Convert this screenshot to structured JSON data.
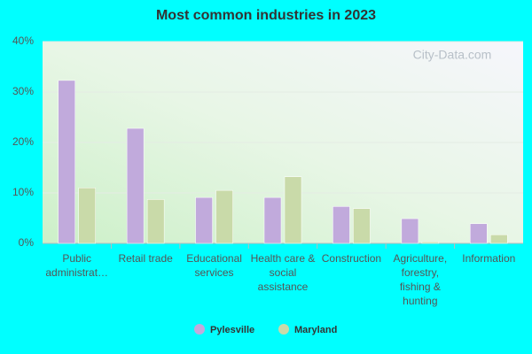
{
  "chart_data": {
    "type": "bar",
    "title": "Most common industries in 2023",
    "watermark": "City-Data.com",
    "categories": [
      "Public administrat…",
      "Retail trade",
      "Educational services",
      "Health care & social assistance",
      "Construction",
      "Agriculture, forestry, fishing & hunting",
      "Information"
    ],
    "series": [
      {
        "name": "Pylesville",
        "color": "#c1aadc",
        "values": [
          32.3,
          22.8,
          9.1,
          9.1,
          7.3,
          4.9,
          3.9
        ]
      },
      {
        "name": "Maryland",
        "color": "#c9daa9",
        "values": [
          11.0,
          8.7,
          10.5,
          13.2,
          6.9,
          0.3,
          1.7
        ]
      }
    ],
    "ylim": [
      0,
      40
    ],
    "yticks": [
      {
        "value": 0,
        "label": "0%"
      },
      {
        "value": 10,
        "label": "10%"
      },
      {
        "value": 20,
        "label": "20%"
      },
      {
        "value": 30,
        "label": "30%"
      },
      {
        "value": 40,
        "label": "40%"
      }
    ],
    "grid": true,
    "legend": "bottom"
  }
}
